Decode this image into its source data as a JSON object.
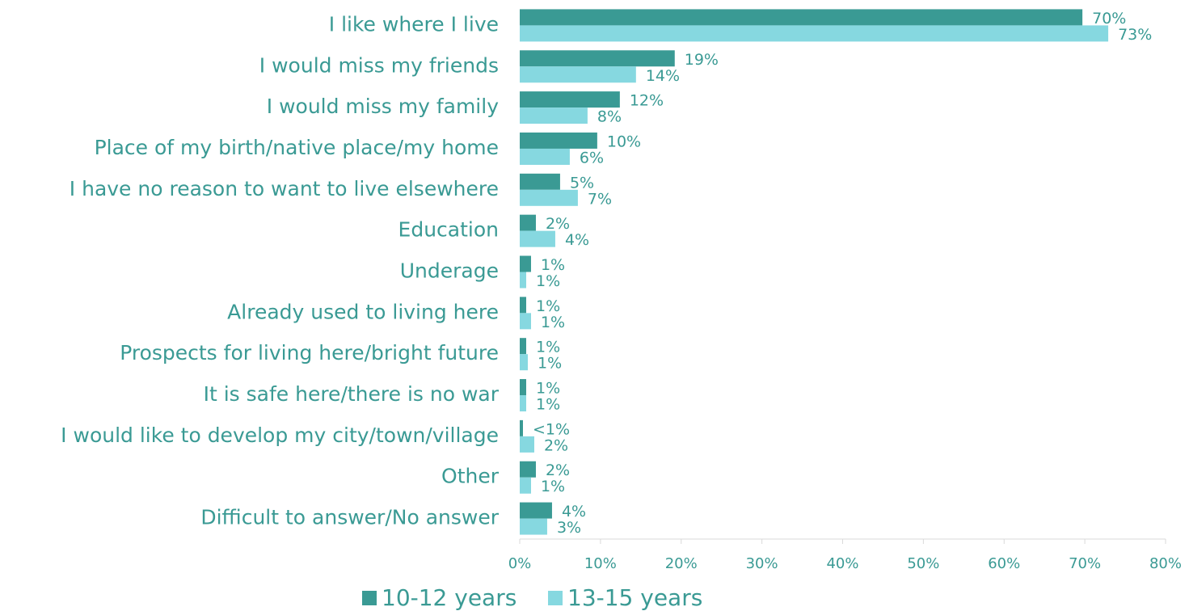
{
  "chart_data": {
    "type": "bar",
    "orientation": "horizontal",
    "categories": [
      "I like where I live",
      "I would miss my friends",
      "I would miss my family",
      "Place of my birth/native place/my home",
      "I have no reason to want to live elsewhere",
      "Education",
      "Underage",
      "Already used to living here",
      "Prospects for living here/bright future",
      "It is safe here/there is no war",
      "I would like to develop my city/town/village",
      "Other",
      "Difficult to answer/No answer"
    ],
    "series": [
      {
        "name": "10-12 years",
        "color": "#3a9a94",
        "values": [
          69.7,
          19.2,
          12.4,
          9.6,
          5.0,
          2.0,
          1.4,
          0.8,
          0.8,
          0.8,
          0.4,
          2.0,
          4.0
        ],
        "value_labels": [
          "70%",
          "19%",
          "12%",
          "10%",
          "5%",
          "2%",
          "1%",
          "1%",
          "1%",
          "1%",
          "<1%",
          "2%",
          "4%"
        ]
      },
      {
        "name": "13-15 years",
        "color": "#86d8e0",
        "values": [
          72.9,
          14.4,
          8.4,
          6.2,
          7.2,
          4.4,
          0.8,
          1.4,
          1.0,
          0.8,
          1.8,
          1.4,
          3.4
        ],
        "value_labels": [
          "73%",
          "14%",
          "8%",
          "6%",
          "7%",
          "4%",
          "1%",
          "1%",
          "1%",
          "1%",
          "2%",
          "1%",
          "3%"
        ]
      }
    ],
    "xlim": [
      0,
      80
    ],
    "xticks": [
      {
        "value": 0,
        "label": "0%"
      },
      {
        "value": 10,
        "label": "10%"
      },
      {
        "value": 20,
        "label": "20%"
      },
      {
        "value": 30,
        "label": "30%"
      },
      {
        "value": 40,
        "label": "40%"
      },
      {
        "value": 50,
        "label": "50%"
      },
      {
        "value": 60,
        "label": "60%"
      },
      {
        "value": 70,
        "label": "70%"
      },
      {
        "value": 80,
        "label": "80%"
      }
    ],
    "legend": "bottom"
  }
}
